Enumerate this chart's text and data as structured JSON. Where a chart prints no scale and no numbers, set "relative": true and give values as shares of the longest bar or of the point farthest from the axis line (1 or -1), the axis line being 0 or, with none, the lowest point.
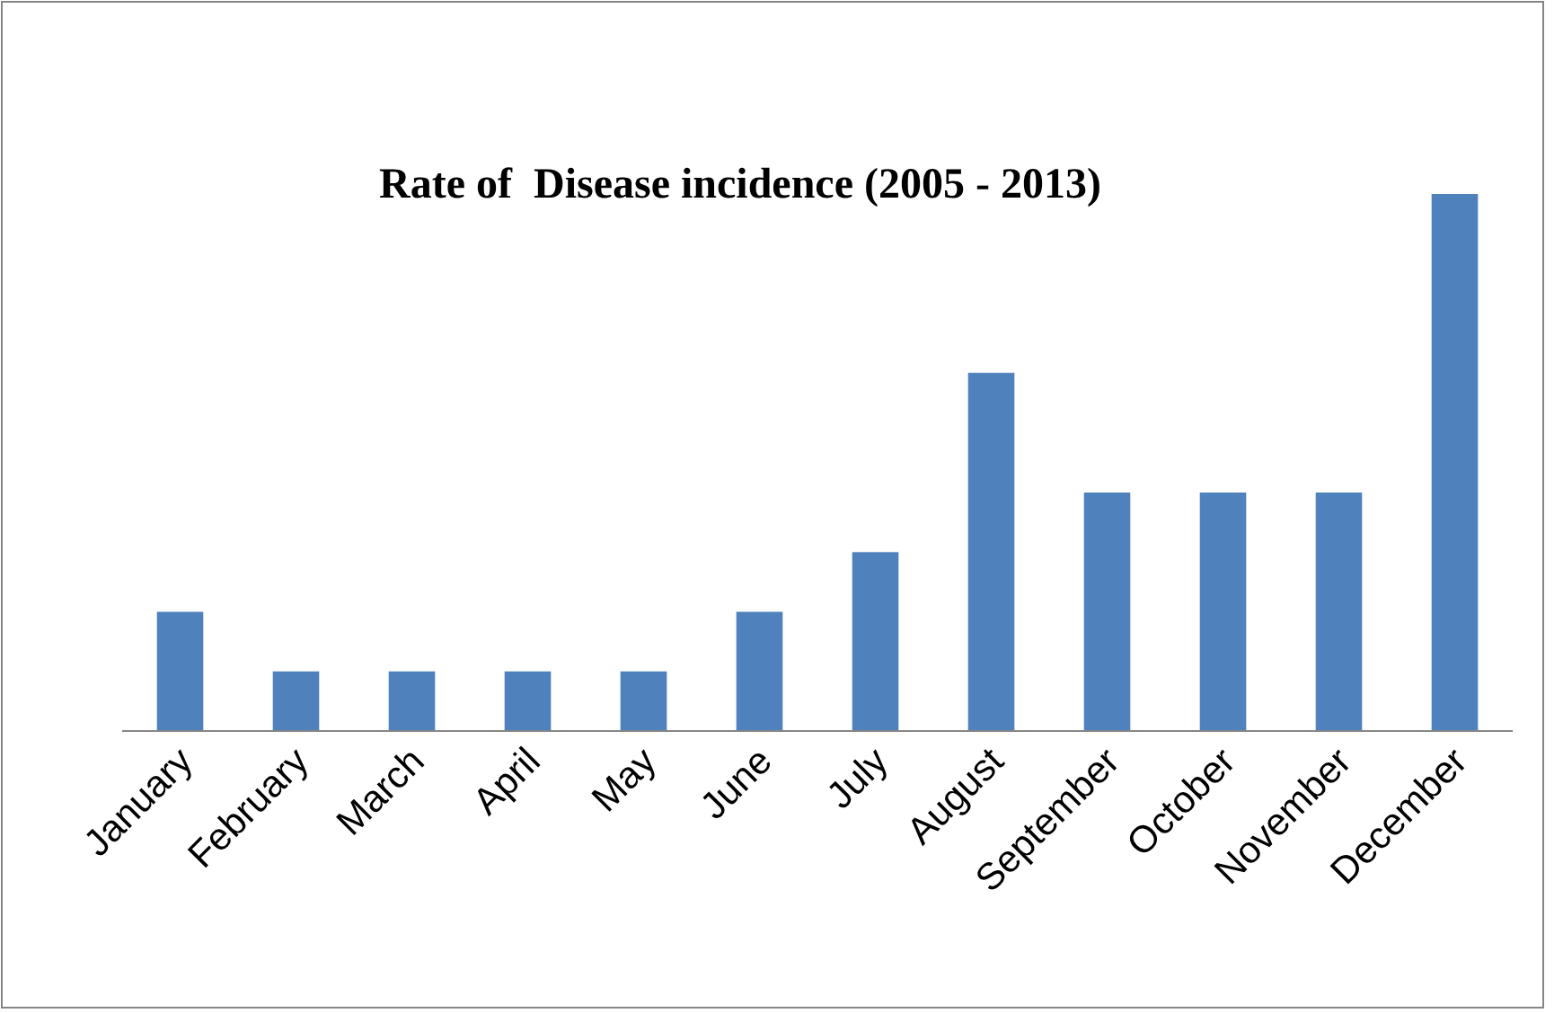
{
  "chart_data": {
    "type": "bar",
    "title": "Rate of  Disease incidence (2005 - 2013)",
    "categories": [
      "January",
      "February",
      "March",
      "April",
      "May",
      "June",
      "July",
      "August",
      "September",
      "October",
      "November",
      "December"
    ],
    "values": [
      0.222,
      0.111,
      0.111,
      0.111,
      0.111,
      0.222,
      0.333,
      0.667,
      0.444,
      0.444,
      0.444,
      1
    ],
    "color": "#4f81bd",
    "relative": true
  }
}
